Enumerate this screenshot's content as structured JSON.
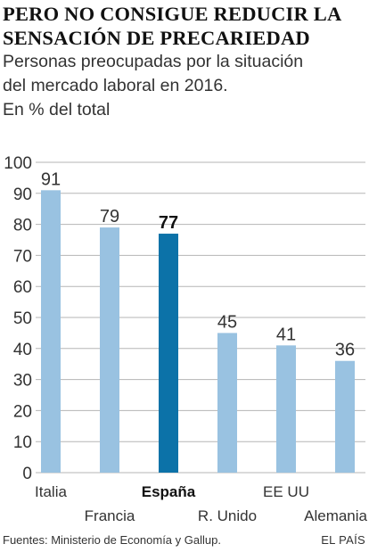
{
  "header": {
    "title": "PERO NO CONSIGUE REDUCIR LA SENSACIÓN DE PRECARIEDAD",
    "subtitle_lines": [
      "Personas preocupadas por la situación",
      "del mercado laboral en 2016.",
      "En % del total"
    ]
  },
  "footer": {
    "source": "Fuentes: Ministerio de Economía y Gallup.",
    "credit": "EL PAÍS"
  },
  "colors": {
    "bar": "#99c2e1",
    "highlight": "#0c72a8",
    "grid": "#b5b5b5"
  },
  "chart_data": {
    "type": "bar",
    "categories": [
      "Italia",
      "Francia",
      "España",
      "R. Unido",
      "EE UU",
      "Alemania"
    ],
    "values": [
      91,
      79,
      77,
      45,
      41,
      36
    ],
    "value_labels": [
      "91",
      "79",
      "77",
      "45",
      "41",
      "36"
    ],
    "highlight": "España",
    "ylim": [
      0,
      100
    ],
    "yticks": [
      "0",
      "10",
      "20",
      "30",
      "40",
      "50",
      "60",
      "70",
      "80",
      "90",
      "100"
    ],
    "grid": true,
    "title": "PERO NO CONSIGUE REDUCIR LA SENSACIÓN DE PRECARIEDAD",
    "xlabel": "",
    "ylabel": ""
  }
}
